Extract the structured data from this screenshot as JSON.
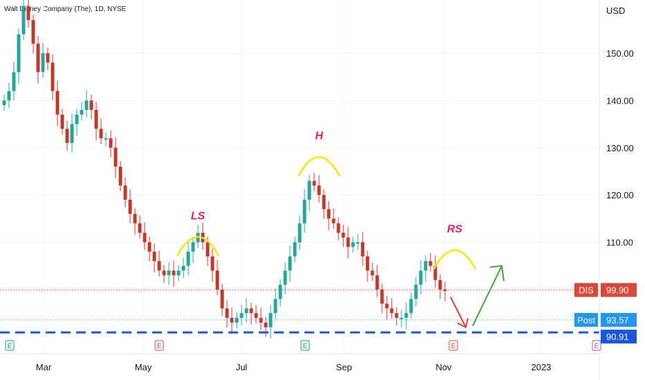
{
  "header": {
    "symbol_title": "Walt Disney Company (The), 1D, NYSE"
  },
  "price_axis": {
    "currency": "USD",
    "ticks": [
      "150.00",
      "140.00",
      "130.00",
      "120.00",
      "110.00"
    ]
  },
  "time_axis": {
    "ticks": [
      "Mar",
      "May",
      "Jul",
      "Sep",
      "Nov",
      "2023"
    ]
  },
  "labels": {
    "dis": {
      "name": "DIS",
      "value": "99.90",
      "color": "#d9483b"
    },
    "post": {
      "name": "Post",
      "value": "93.57",
      "color": "#2196f3"
    },
    "support": {
      "value": "90.91",
      "color": "#1a56db"
    }
  },
  "annotations": [
    {
      "text": "LS",
      "price": 113.7,
      "date_index": 40
    },
    {
      "text": "H",
      "price": 130.6,
      "date_index": 65
    },
    {
      "text": "RS",
      "price": 110.9,
      "date_index": 93
    }
  ],
  "events": [
    {
      "letter": "E",
      "color": "#089981"
    },
    {
      "letter": "E",
      "color": "#d9483b"
    },
    {
      "letter": "E",
      "color": "#089981"
    },
    {
      "letter": "E",
      "color": "#d9483b"
    },
    {
      "letter": "E",
      "color": "#b045c9"
    }
  ],
  "colors": {
    "up": "#26a69a",
    "down": "#c0392b",
    "arc": "#ffe400",
    "annotation": "#e91e63",
    "green_arrow": "#43a047",
    "red_arrow": "#e53935"
  },
  "chart_data": {
    "type": "candlestick",
    "title": "Walt Disney Company (The), 1D, NYSE",
    "y_unit": "USD",
    "ylim": [
      84,
      166
    ],
    "x_start": "2022-01-21",
    "x_end": "2023-02-17",
    "support_level": 90.91,
    "last_price": 99.9,
    "post_market_price": 93.57,
    "closes": [
      140,
      142,
      146,
      154,
      160,
      157,
      152,
      146,
      150,
      148,
      142,
      137,
      134,
      131,
      135,
      137,
      138,
      140,
      138,
      134,
      132,
      132,
      130,
      126,
      122,
      119,
      116,
      114,
      112,
      110,
      108,
      106,
      104,
      103,
      104,
      103,
      104,
      105,
      108,
      110,
      112,
      110,
      107,
      104,
      100,
      96,
      94,
      93,
      94,
      95,
      96,
      95,
      94,
      93,
      92,
      95,
      98,
      101,
      104,
      107,
      110,
      114,
      119,
      123,
      122,
      120,
      117,
      115,
      114,
      112,
      111,
      109,
      110,
      110,
      107,
      104,
      103,
      100,
      97,
      96,
      95,
      94,
      94,
      95,
      98,
      101,
      104,
      106,
      105,
      102,
      100,
      99.9
    ],
    "projection": {
      "down_to": 92,
      "up_to": 105
    }
  }
}
